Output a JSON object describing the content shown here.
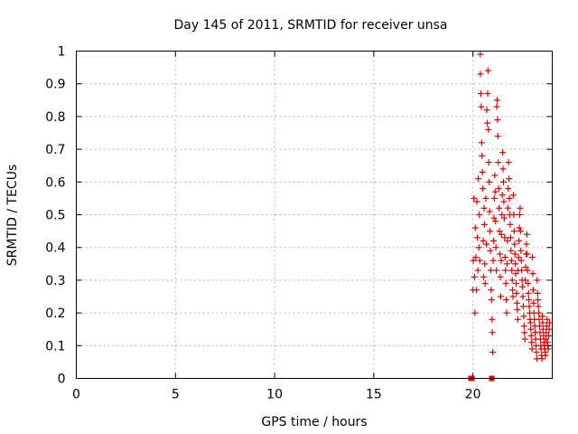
{
  "chart_data": {
    "type": "scatter",
    "title": "Day 145 of 2011, SRMTID for receiver unsa",
    "xlabel": "GPS time / hours",
    "ylabel": "SRMTID / TECUs",
    "xlim": [
      0,
      24
    ],
    "ylim": [
      0,
      1
    ],
    "xticks": [
      0,
      5,
      10,
      15,
      20
    ],
    "yticks": [
      0,
      0.1,
      0.2,
      0.3,
      0.4,
      0.5,
      0.6,
      0.7,
      0.8,
      0.9,
      1
    ],
    "ytick_labels": [
      "0",
      "0.1",
      "0.2",
      "0.3",
      "0.4",
      "0.5",
      "0.6",
      "0.7",
      "0.8",
      "0.9",
      "1"
    ],
    "grid": true,
    "marker_color": "#dd0000",
    "marker": "plus",
    "series": [
      {
        "name": "SRMTID",
        "points": [
          [
            19.9,
            0.0
          ],
          [
            19.95,
            0.0
          ],
          [
            20.95,
            0.0
          ],
          [
            20.0,
            0.27
          ],
          [
            20.02,
            0.36
          ],
          [
            20.05,
            0.55
          ],
          [
            20.08,
            0.31
          ],
          [
            20.1,
            0.2
          ],
          [
            20.12,
            0.46
          ],
          [
            20.15,
            0.37
          ],
          [
            20.18,
            0.27
          ],
          [
            20.2,
            0.54
          ],
          [
            20.22,
            0.43
          ],
          [
            20.25,
            0.33
          ],
          [
            20.27,
            0.61
          ],
          [
            20.3,
            0.4
          ],
          [
            20.32,
            0.5
          ],
          [
            20.35,
            0.36
          ],
          [
            20.37,
            0.99
          ],
          [
            20.38,
            0.93
          ],
          [
            20.4,
            0.87
          ],
          [
            20.42,
            0.83
          ],
          [
            20.44,
            0.72
          ],
          [
            20.46,
            0.68
          ],
          [
            20.48,
            0.63
          ],
          [
            20.5,
            0.58
          ],
          [
            20.52,
            0.42
          ],
          [
            20.54,
            0.31
          ],
          [
            20.56,
            0.52
          ],
          [
            20.58,
            0.47
          ],
          [
            20.6,
            0.35
          ],
          [
            20.62,
            0.29
          ],
          [
            20.65,
            0.55
          ],
          [
            20.68,
            0.41
          ],
          [
            20.7,
            0.82
          ],
          [
            20.72,
            0.78
          ],
          [
            20.74,
            0.87
          ],
          [
            20.76,
            0.94
          ],
          [
            20.78,
            0.76
          ],
          [
            20.8,
            0.66
          ],
          [
            20.82,
            0.6
          ],
          [
            20.84,
            0.51
          ],
          [
            20.86,
            0.45
          ],
          [
            20.88,
            0.39
          ],
          [
            20.9,
            0.33
          ],
          [
            20.92,
            0.27
          ],
          [
            20.94,
            0.24
          ],
          [
            20.96,
            0.18
          ],
          [
            20.98,
            0.14
          ],
          [
            21.0,
            0.08
          ],
          [
            21.02,
            0.36
          ],
          [
            21.04,
            0.42
          ],
          [
            21.06,
            0.49
          ],
          [
            21.08,
            0.55
          ],
          [
            21.1,
            0.62
          ],
          [
            21.12,
            0.57
          ],
          [
            21.14,
            0.48
          ],
          [
            21.16,
            0.4
          ],
          [
            21.18,
            0.33
          ],
          [
            21.2,
            0.83
          ],
          [
            21.22,
            0.85
          ],
          [
            21.24,
            0.79
          ],
          [
            21.26,
            0.74
          ],
          [
            21.28,
            0.66
          ],
          [
            21.3,
            0.58
          ],
          [
            21.32,
            0.52
          ],
          [
            21.34,
            0.45
          ],
          [
            21.36,
            0.38
          ],
          [
            21.38,
            0.31
          ],
          [
            21.4,
            0.25
          ],
          [
            21.42,
            0.36
          ],
          [
            21.44,
            0.44
          ],
          [
            21.46,
            0.5
          ],
          [
            21.48,
            0.56
          ],
          [
            21.5,
            0.69
          ],
          [
            21.52,
            0.64
          ],
          [
            21.54,
            0.6
          ],
          [
            21.56,
            0.54
          ],
          [
            21.58,
            0.49
          ],
          [
            21.6,
            0.43
          ],
          [
            21.62,
            0.37
          ],
          [
            21.64,
            0.33
          ],
          [
            21.66,
            0.29
          ],
          [
            21.68,
            0.24
          ],
          [
            21.7,
            0.2
          ],
          [
            21.72,
            0.35
          ],
          [
            21.74,
            0.42
          ],
          [
            21.76,
            0.52
          ],
          [
            21.78,
            0.58
          ],
          [
            21.8,
            0.66
          ],
          [
            21.82,
            0.61
          ],
          [
            21.84,
            0.55
          ],
          [
            21.86,
            0.5
          ],
          [
            21.88,
            0.47
          ],
          [
            21.9,
            0.43
          ],
          [
            21.92,
            0.39
          ],
          [
            21.94,
            0.36
          ],
          [
            21.96,
            0.33
          ],
          [
            21.98,
            0.3
          ],
          [
            22.0,
            0.27
          ],
          [
            22.02,
            0.25
          ],
          [
            22.04,
            0.56
          ],
          [
            22.06,
            0.5
          ],
          [
            22.08,
            0.45
          ],
          [
            22.1,
            0.41
          ],
          [
            22.12,
            0.38
          ],
          [
            22.14,
            0.35
          ],
          [
            22.16,
            0.32
          ],
          [
            22.18,
            0.29
          ],
          [
            22.2,
            0.26
          ],
          [
            22.22,
            0.23
          ],
          [
            22.24,
            0.21
          ],
          [
            22.26,
            0.18
          ],
          [
            22.28,
            0.33
          ],
          [
            22.3,
            0.37
          ],
          [
            22.32,
            0.42
          ],
          [
            22.34,
            0.46
          ],
          [
            22.36,
            0.5
          ],
          [
            22.38,
            0.52
          ],
          [
            22.4,
            0.45
          ],
          [
            22.42,
            0.39
          ],
          [
            22.44,
            0.36
          ],
          [
            22.46,
            0.33
          ],
          [
            22.48,
            0.3
          ],
          [
            22.5,
            0.28
          ],
          [
            22.52,
            0.25
          ],
          [
            22.54,
            0.22
          ],
          [
            22.56,
            0.19
          ],
          [
            22.58,
            0.16
          ],
          [
            22.6,
            0.14
          ],
          [
            22.62,
            0.12
          ],
          [
            22.64,
            0.3
          ],
          [
            22.66,
            0.34
          ],
          [
            22.68,
            0.38
          ],
          [
            22.7,
            0.41
          ],
          [
            22.72,
            0.44
          ],
          [
            22.74,
            0.38
          ],
          [
            22.76,
            0.33
          ],
          [
            22.78,
            0.29
          ],
          [
            22.8,
            0.26
          ],
          [
            22.82,
            0.24
          ],
          [
            22.84,
            0.22
          ],
          [
            22.86,
            0.2
          ],
          [
            22.88,
            0.18
          ],
          [
            22.9,
            0.17
          ],
          [
            22.92,
            0.15
          ],
          [
            22.94,
            0.13
          ],
          [
            22.96,
            0.11
          ],
          [
            22.98,
            0.09
          ],
          [
            23.0,
            0.37
          ],
          [
            23.02,
            0.32
          ],
          [
            23.04,
            0.27
          ],
          [
            23.06,
            0.23
          ],
          [
            23.08,
            0.2
          ],
          [
            23.1,
            0.18
          ],
          [
            23.12,
            0.16
          ],
          [
            23.14,
            0.14
          ],
          [
            23.16,
            0.12
          ],
          [
            23.18,
            0.1
          ],
          [
            23.2,
            0.08
          ],
          [
            23.22,
            0.06
          ],
          [
            23.24,
            0.3
          ],
          [
            23.26,
            0.26
          ],
          [
            23.28,
            0.24
          ],
          [
            23.3,
            0.22
          ],
          [
            23.32,
            0.2
          ],
          [
            23.34,
            0.18
          ],
          [
            23.36,
            0.16
          ],
          [
            23.38,
            0.14
          ],
          [
            23.4,
            0.12
          ],
          [
            23.42,
            0.1
          ],
          [
            23.44,
            0.09
          ],
          [
            23.46,
            0.07
          ],
          [
            23.48,
            0.06
          ],
          [
            23.5,
            0.19
          ],
          [
            23.52,
            0.17
          ],
          [
            23.54,
            0.15
          ],
          [
            23.56,
            0.13
          ],
          [
            23.58,
            0.11
          ],
          [
            23.6,
            0.1
          ],
          [
            23.62,
            0.09
          ],
          [
            23.64,
            0.08
          ],
          [
            23.66,
            0.07
          ],
          [
            23.68,
            0.12
          ],
          [
            23.7,
            0.14
          ],
          [
            23.72,
            0.16
          ],
          [
            23.74,
            0.18
          ],
          [
            23.76,
            0.11
          ],
          [
            23.78,
            0.1
          ],
          [
            23.8,
            0.09
          ],
          [
            23.82,
            0.13
          ],
          [
            23.84,
            0.15
          ],
          [
            23.86,
            0.17
          ]
        ]
      }
    ]
  }
}
